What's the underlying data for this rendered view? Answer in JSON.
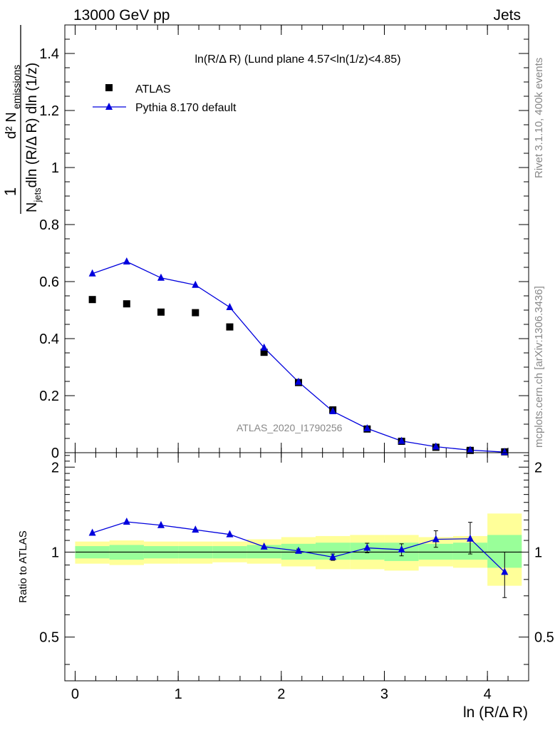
{
  "header": {
    "energy": "13000 GeV pp",
    "category": "Jets",
    "analysis_id": "ATLAS_2020_I1790256",
    "side_top": "Rivet 3.1.10,  400k events",
    "side_bottom": "mcplots.cern.ch [arXiv:1306.3436]"
  },
  "colors": {
    "mc": "#0000dd",
    "data": "#000000",
    "band_inner": "#99ff99",
    "band_outer": "#ffff99"
  },
  "chart_data": [
    {
      "type": "scatter",
      "title": "ln(R/Δ R) (Lund plane 4.57<ln(1/z)<4.85)",
      "xlabel": "ln (R/Δ R)",
      "ylabel_num": "d² N",
      "ylabel_num_sub": "emissions",
      "ylabel_den_main": "N",
      "ylabel_den_sub": "jets",
      "ylabel_den_rest": "dln (R/Δ R) dln (1/z)",
      "ylabel_one": "1",
      "xlim": [
        -0.1,
        4.4
      ],
      "ylim": [
        0,
        1.5
      ],
      "yticks": [
        0,
        0.2,
        0.4,
        0.6,
        0.8,
        1,
        1.2,
        1.4
      ],
      "ytick_labels": [
        "0",
        "0.2",
        "0.4",
        "0.6",
        "0.8",
        "1",
        "1.2",
        "1.4"
      ],
      "legend_position": "top-left",
      "series": [
        {
          "name": "ATLAS",
          "marker": "square",
          "x": [
            0.167,
            0.5,
            0.833,
            1.167,
            1.5,
            1.833,
            2.167,
            2.5,
            2.833,
            3.167,
            3.5,
            3.833,
            4.167
          ],
          "y": [
            0.537,
            0.522,
            0.493,
            0.491,
            0.441,
            0.352,
            0.246,
            0.15,
            0.083,
            0.04,
            0.019,
            0.008,
            0.003
          ]
        },
        {
          "name": "Pythia 8.170 default",
          "marker": "triangle",
          "x": [
            0.167,
            0.5,
            0.833,
            1.167,
            1.5,
            1.833,
            2.167,
            2.5,
            2.833,
            3.167,
            3.5,
            3.833,
            4.167
          ],
          "y": [
            0.628,
            0.67,
            0.613,
            0.588,
            0.51,
            0.368,
            0.248,
            0.145,
            0.085,
            0.041,
            0.021,
            0.009,
            0.002
          ]
        }
      ]
    },
    {
      "type": "line",
      "ylabel": "Ratio to ATLAS",
      "xlabel": "ln (R/Δ R)",
      "xlim": [
        -0.1,
        4.4
      ],
      "ylim": [
        0.35,
        2.25
      ],
      "ylog": true,
      "xticks": [
        0,
        1,
        2,
        3,
        4
      ],
      "xtick_labels": [
        "0",
        "1",
        "2",
        "3",
        "4"
      ],
      "yticks": [
        0.5,
        1,
        2
      ],
      "ytick_labels": [
        "0.5",
        "1",
        "2"
      ],
      "reference": 1,
      "bin_edges": [
        0,
        0.333,
        0.667,
        1.0,
        1.333,
        1.667,
        2.0,
        2.333,
        2.667,
        3.0,
        3.333,
        3.667,
        4.0,
        4.333
      ],
      "band_inner_low": [
        0.95,
        0.94,
        0.95,
        0.95,
        0.95,
        0.95,
        0.94,
        0.94,
        0.94,
        0.93,
        0.94,
        0.94,
        0.88
      ],
      "band_inner_high": [
        1.05,
        1.06,
        1.05,
        1.05,
        1.05,
        1.06,
        1.07,
        1.08,
        1.08,
        1.08,
        1.07,
        1.08,
        1.15
      ],
      "band_outer_low": [
        0.91,
        0.9,
        0.91,
        0.91,
        0.92,
        0.91,
        0.89,
        0.87,
        0.87,
        0.86,
        0.89,
        0.88,
        0.76
      ],
      "band_outer_high": [
        1.09,
        1.1,
        1.09,
        1.09,
        1.09,
        1.11,
        1.13,
        1.14,
        1.15,
        1.15,
        1.13,
        1.14,
        1.37
      ],
      "series": [
        {
          "name": "Pythia 8.170 default",
          "x": [
            0.167,
            0.5,
            0.833,
            1.167,
            1.5,
            1.833,
            2.167,
            2.5,
            2.833,
            3.167,
            3.5,
            3.833,
            4.167
          ],
          "y": [
            1.17,
            1.28,
            1.245,
            1.2,
            1.155,
            1.045,
            1.01,
            0.96,
            1.035,
            1.02,
            1.11,
            1.115,
            0.85
          ],
          "err_low": [
            0,
            0,
            0,
            0,
            0,
            0,
            0.015,
            0.025,
            0.04,
            0.05,
            0.07,
            0.13,
            0.16
          ],
          "err_high": [
            0,
            0,
            0,
            0,
            0,
            0,
            0.015,
            0.025,
            0.04,
            0.05,
            0.08,
            0.16,
            0.15
          ]
        }
      ]
    }
  ]
}
